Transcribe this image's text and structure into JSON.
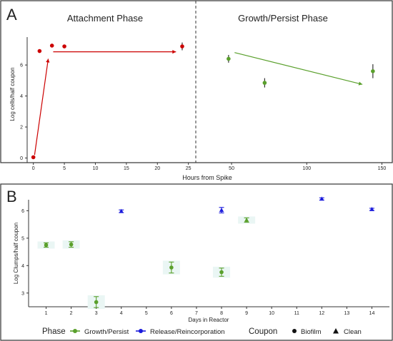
{
  "panels": {
    "a": {
      "letter": "A"
    },
    "b": {
      "letter": "B"
    }
  },
  "colors": {
    "attachment": "#cc0000",
    "growth": "#5aa02c",
    "release": "#1a1adc",
    "band": "#eaf6f4",
    "frame": "#333333"
  },
  "chart_data": [
    {
      "type": "scatter",
      "title": "Attachment Phase",
      "xlabel": "Hours from Spike",
      "ylabel": "Log cells/half coupon",
      "xlim": [
        -1,
        25.5
      ],
      "ylim": [
        -0.3,
        7.8
      ],
      "xticks": [
        0,
        5,
        10,
        15,
        20,
        25
      ],
      "yticks": [
        0,
        2,
        4,
        6
      ],
      "grid": false,
      "series": [
        {
          "color": "#cc0000",
          "points": [
            {
              "x": 0,
              "y": 0.05,
              "err": 0
            },
            {
              "x": 1,
              "y": 6.9,
              "err": 0
            },
            {
              "x": 3,
              "y": 7.25,
              "err": 0
            },
            {
              "x": 5,
              "y": 7.2,
              "err": 0
            },
            {
              "x": 24,
              "y": 7.2,
              "err": 0.25
            }
          ]
        }
      ],
      "annotations": [
        {
          "type": "arrow",
          "from": [
            0.2,
            0.2
          ],
          "to": [
            2.4,
            6.4
          ]
        },
        {
          "type": "arrow",
          "from": [
            3.2,
            6.85
          ],
          "to": [
            23,
            6.85
          ]
        }
      ]
    },
    {
      "type": "scatter",
      "title": "Growth/Persist Phase",
      "xlabel": "",
      "ylabel": "",
      "xlim": [
        30,
        155
      ],
      "ylim": [
        -0.3,
        7.8
      ],
      "xticks": [
        50,
        100,
        150
      ],
      "grid": false,
      "series": [
        {
          "color": "#5aa02c",
          "points": [
            {
              "x": 48,
              "y": 6.4,
              "err": 0.25
            },
            {
              "x": 72,
              "y": 4.85,
              "err": 0.3
            },
            {
              "x": 144,
              "y": 5.6,
              "err": 0.45
            }
          ]
        }
      ],
      "annotations": [
        {
          "type": "arrow",
          "from": [
            52,
            6.8
          ],
          "to": [
            137,
            4.75
          ]
        }
      ]
    },
    {
      "type": "scatter",
      "title": "",
      "xlabel": "Days in Reactor",
      "ylabel": "Log Clumps/half coupon",
      "xlim": [
        0.3,
        14.7
      ],
      "ylim": [
        2.5,
        6.4
      ],
      "xticks": [
        1,
        2,
        3,
        4,
        5,
        6,
        7,
        8,
        9,
        10,
        11,
        12,
        13,
        14
      ],
      "yticks": [
        3,
        4,
        5,
        6
      ],
      "grid": false,
      "series": [
        {
          "name": "Growth/Persist",
          "color": "#5aa02c",
          "marker": "circle",
          "points": [
            {
              "x": 1,
              "y": 4.75,
              "err": 0.08
            },
            {
              "x": 2,
              "y": 4.77,
              "err": 0.1
            },
            {
              "x": 3,
              "y": 2.67,
              "err": 0.2
            },
            {
              "x": 6,
              "y": 3.93,
              "err": 0.2
            },
            {
              "x": 8,
              "y": 3.76,
              "err": 0.15
            }
          ]
        },
        {
          "name": "Growth/Persist",
          "color": "#5aa02c",
          "marker": "triangle",
          "points": [
            {
              "x": 9,
              "y": 5.66,
              "err": 0.08
            }
          ]
        },
        {
          "name": "Release/Reincorporation",
          "color": "#1a1adc",
          "marker": "triangle",
          "points": [
            {
              "x": 4,
              "y": 5.98,
              "err": 0.05
            },
            {
              "x": 8,
              "y": 6.02,
              "err": 0.1
            },
            {
              "x": 12,
              "y": 6.43,
              "err": 0.04
            },
            {
              "x": 14,
              "y": 6.05,
              "err": 0.04
            }
          ]
        }
      ],
      "legend": {
        "placement": "bottom",
        "phase_title": "Phase",
        "phase_entries": [
          {
            "label": "Growth/Persist",
            "color": "#5aa02c"
          },
          {
            "label": "Release/Reincorporation",
            "color": "#1a1adc"
          }
        ],
        "coupon_title": "Coupon",
        "coupon_entries": [
          {
            "label": "Biofilm",
            "marker": "circle"
          },
          {
            "label": "Clean",
            "marker": "triangle"
          }
        ]
      }
    }
  ]
}
